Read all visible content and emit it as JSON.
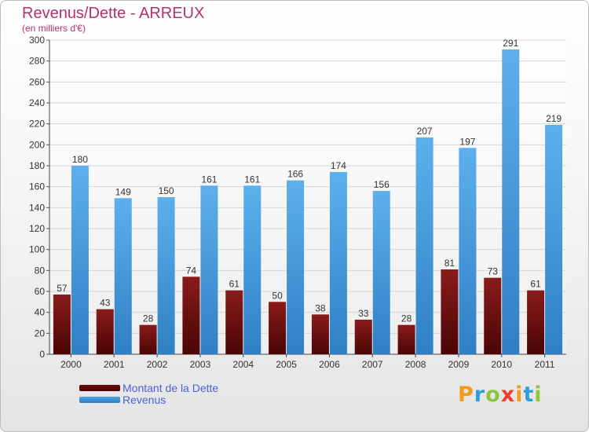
{
  "title": "Revenus/Dette - ARREUX",
  "subtitle": "(en milliers d'€)",
  "colors": {
    "dette": "#6b0a0a",
    "revenus": "#4ea3e4",
    "title": "#b4306e",
    "legend_text": "#4a63d6"
  },
  "chart_data": {
    "type": "bar",
    "categories": [
      "2000",
      "2001",
      "2002",
      "2003",
      "2004",
      "2005",
      "2006",
      "2007",
      "2008",
      "2009",
      "2010",
      "2011"
    ],
    "series": [
      {
        "name": "Montant de la Dette",
        "values": [
          57,
          43,
          28,
          74,
          61,
          50,
          38,
          33,
          28,
          81,
          73,
          61
        ]
      },
      {
        "name": "Revenus",
        "values": [
          180,
          149,
          150,
          161,
          161,
          166,
          174,
          156,
          207,
          197,
          291,
          219
        ]
      }
    ],
    "yticks": [
      0,
      20,
      40,
      60,
      80,
      100,
      120,
      140,
      160,
      180,
      200,
      220,
      240,
      260,
      280,
      300
    ],
    "ylim": [
      0,
      300
    ],
    "grid": true,
    "legend_position": "bottom-left"
  },
  "logo": {
    "text": "Proxiti",
    "letters": [
      {
        "ch": "P",
        "color": "#f39c1a"
      },
      {
        "ch": "r",
        "color": "#2e9fd8"
      },
      {
        "ch": "o",
        "color": "#8cc63f"
      },
      {
        "ch": "x",
        "color": "#e8412c"
      },
      {
        "ch": "i",
        "color": "#f39c1a"
      },
      {
        "ch": "t",
        "color": "#2e9fd8"
      },
      {
        "ch": "i",
        "color": "#8cc63f"
      }
    ]
  }
}
